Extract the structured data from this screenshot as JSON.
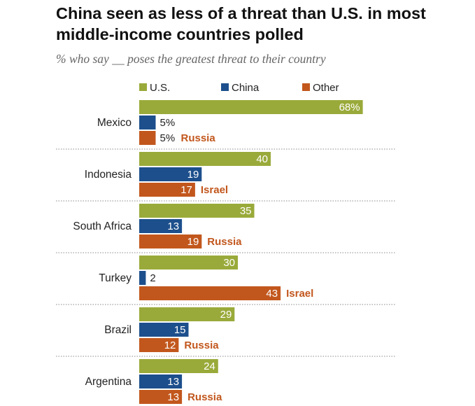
{
  "header": {
    "title": "China seen as less of a threat than U.S. in most middle-income countries polled",
    "subtitle": "% who say __ poses the greatest threat to their country"
  },
  "colors": {
    "us": "#9aaa3a",
    "china": "#1d4f8c",
    "other": "#c2571d",
    "divider": "#888888"
  },
  "chart_data": {
    "type": "bar",
    "orientation": "horizontal",
    "categories": [
      "Mexico",
      "Indonesia",
      "South Africa",
      "Turkey",
      "Brazil",
      "Argentina"
    ],
    "series": [
      {
        "name": "U.S.",
        "values": [
          68,
          40,
          35,
          30,
          29,
          24
        ],
        "labels": [
          "68%",
          "40",
          "35",
          "30",
          "29",
          "24"
        ]
      },
      {
        "name": "China",
        "values": [
          5,
          19,
          13,
          2,
          15,
          13
        ],
        "labels": [
          "5%",
          "19",
          "13",
          "2",
          "15",
          "13"
        ]
      },
      {
        "name": "Other",
        "values": [
          5,
          17,
          19,
          43,
          12,
          13
        ],
        "labels": [
          "5%",
          "17",
          "19",
          "43",
          "12",
          "13"
        ]
      }
    ],
    "other_country": [
      "Russia",
      "Israel",
      "Russia",
      "Israel",
      "Russia",
      "Russia"
    ],
    "legend": [
      "U.S.",
      "China",
      "Other"
    ],
    "legend_position": "top",
    "xlim": [
      0,
      100
    ],
    "grid": false
  }
}
